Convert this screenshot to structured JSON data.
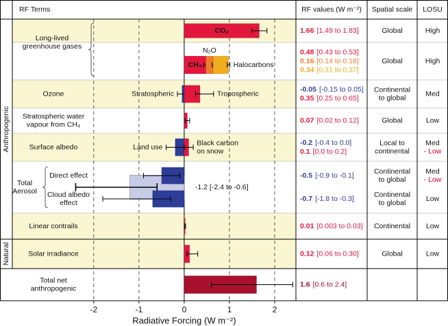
{
  "chart_data": {
    "type": "forcing",
    "header": {
      "terms": "RF Terms",
      "values": "RF values (W m⁻²)",
      "scale": "Spatial scale",
      "losu": "LOSU"
    },
    "xlabel": "Radiative Forcing (W m⁻²)",
    "xlim": [
      -3.8,
      2.47
    ],
    "xticks": [
      -2,
      -1,
      0,
      1,
      2
    ],
    "grid": true,
    "sections": [
      {
        "label": "Anthropogenic",
        "rows": [
          {
            "label": [
              "Long-lived",
              "greenhouse gases"
            ],
            "bars": [
              {
                "name": [
                  "CO₂"
                ],
                "value": 1.66,
                "ci": [
                  1.49,
                  1.83
                ],
                "ci_label": "[1.49 to 1.83]",
                "color": "#e3173e"
              }
            ],
            "scale": [
              "Global"
            ],
            "losu": [
              "High"
            ]
          },
          {
            "bars": [
              {
                "name": [
                  "CH₄"
                ],
                "value": 0.48,
                "ci": [
                  0.43,
                  0.53
                ],
                "ci_label": "[0.43 to 0.53]",
                "color": "#e3173e"
              },
              {
                "name": [
                  "N₂O"
                ],
                "value": 0.16,
                "ci": [
                  0.14,
                  0.18
                ],
                "ci_label": "[0.14 to 0.18]",
                "color": "#f07a2a"
              },
              {
                "name": [
                  "Halocarbons"
                ],
                "value": 0.34,
                "ci": [
                  0.31,
                  0.37
                ],
                "ci_label": "[0.31 to 0.37]",
                "color": "#f0ae1e"
              }
            ],
            "scale": [
              "Global"
            ],
            "losu": [
              "High"
            ]
          },
          {
            "label": [
              "Ozone"
            ],
            "bars": [
              {
                "name": [
                  "Stratospheric"
                ],
                "value": -0.05,
                "ci": [
                  -0.15,
                  0.05
                ],
                "ci_label": "[-0.15 to 0.05]",
                "color": "#2e3d98"
              },
              {
                "name": [
                  "Tropospheric"
                ],
                "value": 0.35,
                "ci": [
                  0.25,
                  0.65
                ],
                "ci_label": "[0.25 to 0.65]",
                "color": "#e3173e"
              }
            ],
            "scale": [
              "Continental",
              "to global"
            ],
            "losu": [
              "Med"
            ]
          },
          {
            "label": [
              "Stratospheric water",
              "vapour from CH₄"
            ],
            "bars": [
              {
                "value": 0.07,
                "ci": [
                  0.02,
                  0.12
                ],
                "ci_label": "[0.02 to 0.12]",
                "color": "#e3173e"
              }
            ],
            "scale": [
              "Global"
            ],
            "losu": [
              "Low"
            ]
          },
          {
            "label": [
              "Surface albedo"
            ],
            "bars": [
              {
                "name": [
                  "Land use"
                ],
                "value": -0.2,
                "ci": [
                  -0.4,
                  0.0
                ],
                "ci_label": "[-0.4 to 0.0]",
                "color": "#2e3d98"
              },
              {
                "name": [
                  "Black carbon",
                  "on snow"
                ],
                "value": 0.1,
                "ci": [
                  0.0,
                  0.2
                ],
                "ci_label": "[0.0 to 0.2]",
                "color": "#e3173e"
              }
            ],
            "scale": [
              "Local to",
              "continental"
            ],
            "losu": [
              "Med",
              "- Low"
            ]
          },
          {
            "label": [
              "Total",
              "Aerosol"
            ],
            "bars": [
              {
                "name": [
                  "Direct effect"
                ],
                "value": -0.5,
                "ci": [
                  -0.9,
                  -0.1
                ],
                "ci_label": "[-0.9 to -0.1]",
                "color": "#2e3d98",
                "scale": [
                  "Continental",
                  "to global"
                ],
                "losu": [
                  "Med",
                  "- Low"
                ]
              },
              {
                "name": [
                  "Cloud albedo",
                  "effect"
                ],
                "value": -0.7,
                "ci": [
                  -1.8,
                  -0.3
                ],
                "ci_label": "[-1.8 to -0.3]",
                "color": "#2e3d98",
                "scale": [
                  "Continental",
                  "to global"
                ],
                "losu": [
                  "Low"
                ]
              }
            ],
            "total": {
              "value": -1.2,
              "ci": [
                -2.4,
                -0.6
              ],
              "value_label": "-1.2 [-2.4 to -0.6]",
              "color": "#c6cce6"
            }
          },
          {
            "label": [
              "Linear contrails"
            ],
            "bars": [
              {
                "value": 0.01,
                "ci": [
                  0.003,
                  0.03
                ],
                "ci_label": "[0.003 to 0.03]",
                "color": "#e3173e"
              }
            ],
            "scale": [
              "Continental"
            ],
            "losu": [
              "Low"
            ]
          }
        ]
      },
      {
        "label": "Natural",
        "rows": [
          {
            "label": [
              "Solar irradiance"
            ],
            "bars": [
              {
                "value": 0.12,
                "ci": [
                  0.06,
                  0.3
                ],
                "ci_label": "[0.06 to 0.30]",
                "color": "#e3173e"
              }
            ],
            "scale": [
              "Global"
            ],
            "losu": [
              "Low"
            ]
          }
        ]
      }
    ],
    "total": {
      "label": [
        "Total net",
        "anthropogenic"
      ],
      "bars": [
        {
          "value": 1.6,
          "ci": [
            0.6,
            2.4
          ],
          "ci_label": "[0.6 to 2.4]",
          "color": "#a8102e"
        }
      ]
    }
  }
}
